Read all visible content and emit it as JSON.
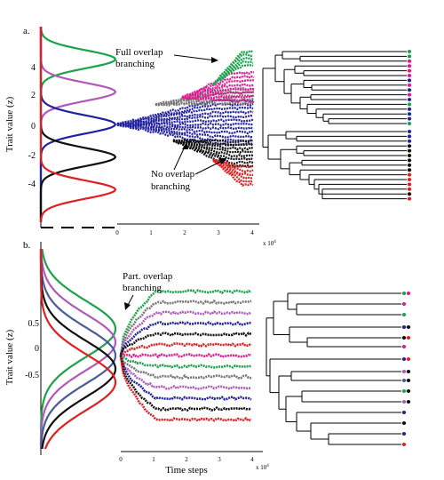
{
  "panels": [
    {
      "label": "a.",
      "ylabel": "Trait value (z)",
      "ytick_labels": [
        "4",
        "2",
        "0",
        "-2",
        "-4"
      ],
      "xtick_labels": [
        "0",
        "1",
        "2",
        "3",
        "4"
      ],
      "x_multiplier": "x 10",
      "x_exponent": "4",
      "annotations": [
        {
          "line1": "Full overlap",
          "line2": "branching"
        },
        {
          "line1": "No overlap",
          "line2": "branching"
        }
      ]
    },
    {
      "label": "b.",
      "ylabel": "Trait value (z)",
      "ytick_labels": [
        "0.5",
        "0",
        "-0.5"
      ],
      "xtick_labels": [
        "0",
        "1",
        "2",
        "3",
        "4"
      ],
      "xlabel": "Time steps",
      "x_multiplier": "x 10",
      "x_exponent": "4",
      "annotations": [
        {
          "line1": "Part. overlap",
          "line2": "branching"
        }
      ]
    }
  ],
  "colors": {
    "green": "#1aa34a",
    "magenta": "#e0198f",
    "purple": "#b05ab8",
    "blue": "#2222a0",
    "slate": "#4a5a9a",
    "black": "#111111",
    "red": "#e02020",
    "gray": "#777777"
  },
  "chart_data": [
    {
      "type": "line",
      "ylim": [
        -6,
        6
      ],
      "xlim": [
        0,
        4
      ],
      "distributions": [
        {
          "mean": 4,
          "sd": 0.55,
          "color": "green"
        },
        {
          "mean": 2,
          "sd": 0.55,
          "color": "purple"
        },
        {
          "mean": 0,
          "sd": 0.55,
          "color": "blue"
        },
        {
          "mean": -2,
          "sd": 0.55,
          "color": "black"
        },
        {
          "mean": -4,
          "sd": 0.55,
          "color": "red"
        }
      ]
    },
    {
      "type": "line",
      "ylim": [
        -1.4,
        1.6
      ],
      "xlim": [
        0,
        4
      ],
      "distributions": [
        {
          "mean": 0.4,
          "sd": 0.42,
          "color": "green"
        },
        {
          "mean": 0.2,
          "sd": 0.42,
          "color": "purple"
        },
        {
          "mean": 0.0,
          "sd": 0.42,
          "color": "slate"
        },
        {
          "mean": -0.2,
          "sd": 0.42,
          "color": "black"
        },
        {
          "mean": -0.4,
          "sd": 0.42,
          "color": "red"
        }
      ]
    }
  ]
}
